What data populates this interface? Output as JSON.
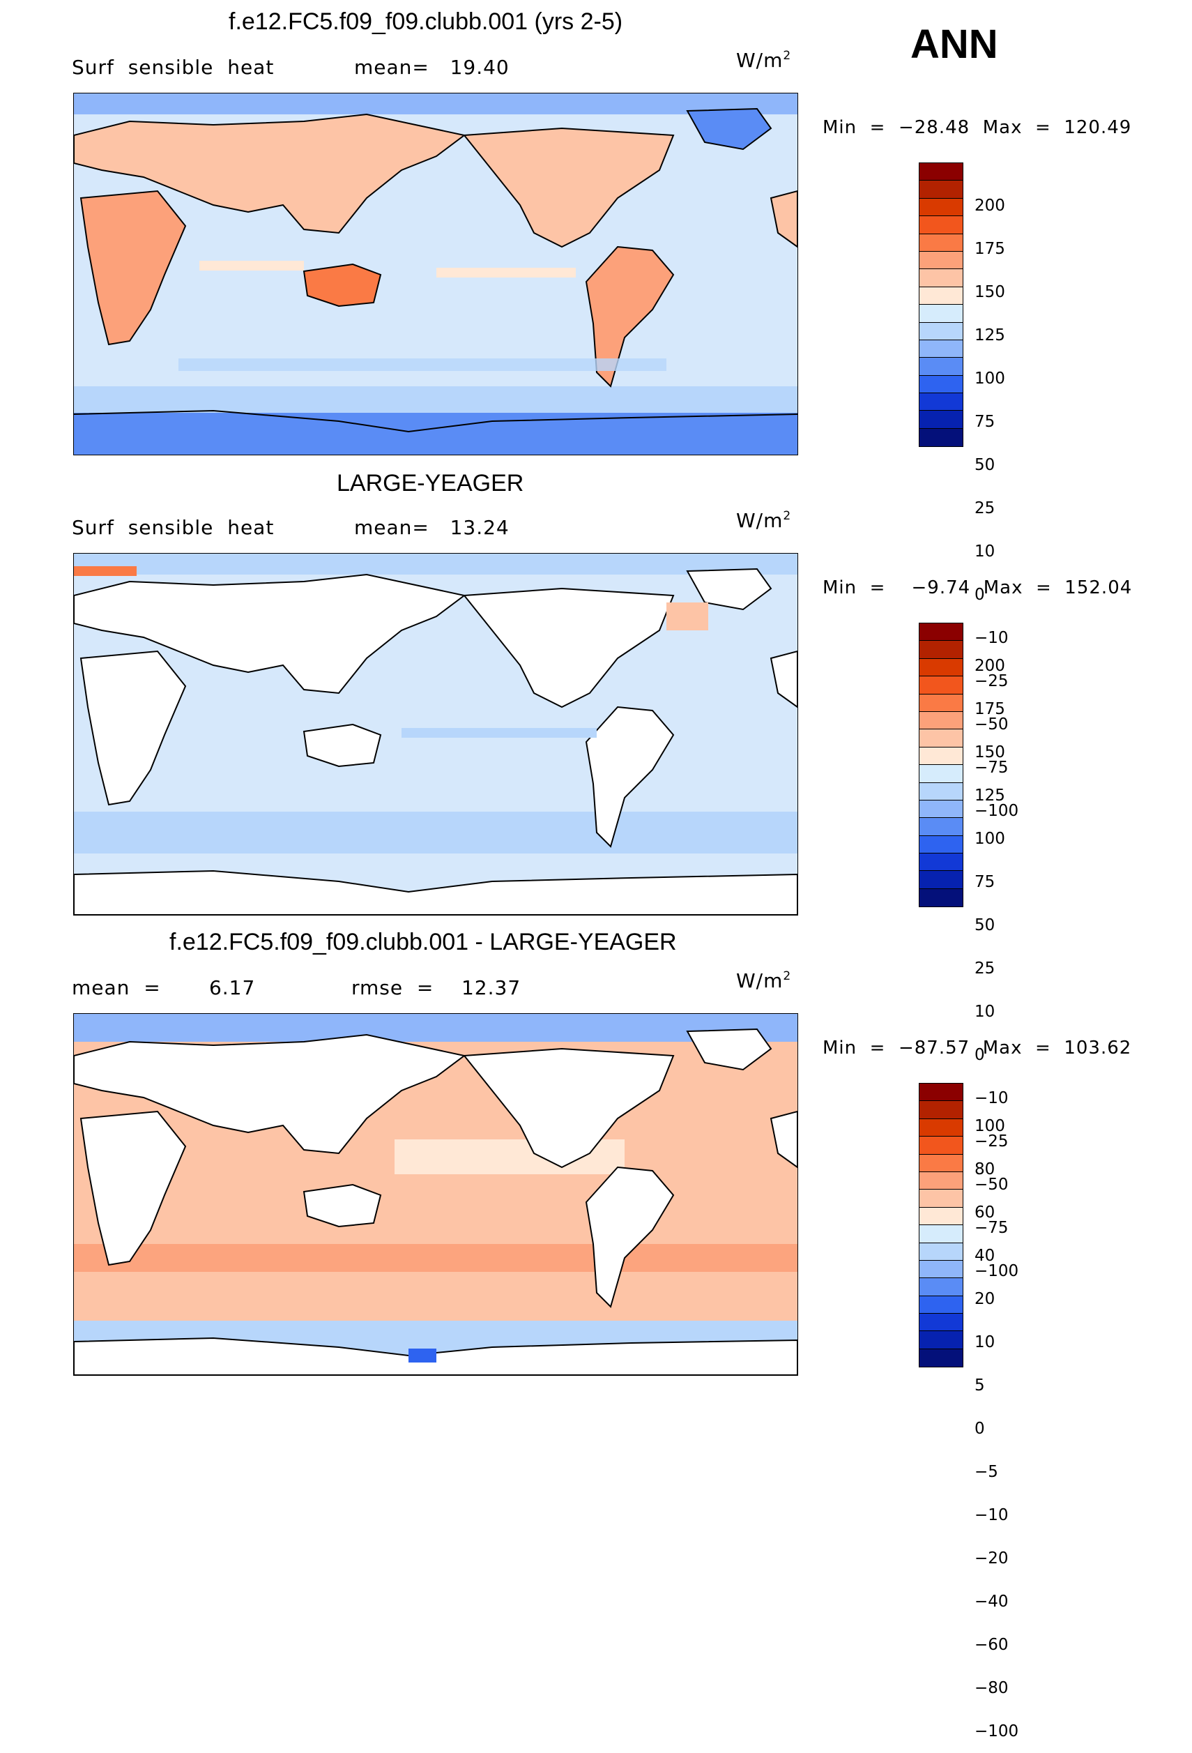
{
  "season": "ANN",
  "panels": [
    {
      "title": "f.e12.FC5.f09_f09.clubb.001 (yrs 2-5)",
      "left_label": "Surf  sensible  heat",
      "mid_label": "mean=   19.40",
      "units_label": "W/m",
      "units_sup": "2",
      "minmax": "Min  =  −28.48  Max  =  120.49",
      "colorbar_ticks": [
        "200",
        "175",
        "150",
        "125",
        "100",
        "75",
        "50",
        "25",
        "10",
        "0",
        "−10",
        "−25",
        "−50",
        "−75",
        "−100"
      ]
    },
    {
      "title": "LARGE-YEAGER",
      "left_label": "Surf  sensible  heat",
      "mid_label": "mean=   13.24",
      "units_label": "W/m",
      "units_sup": "2",
      "minmax": "Min  =    −9.74  Max  =  152.04",
      "colorbar_ticks": [
        "200",
        "175",
        "150",
        "125",
        "100",
        "75",
        "50",
        "25",
        "10",
        "0",
        "−10",
        "−25",
        "−50",
        "−75",
        "−100"
      ]
    },
    {
      "title": "f.e12.FC5.f09_f09.clubb.001 - LARGE-YEAGER",
      "left_label": "mean  =       6.17",
      "mid_label": "rmse  =    12.37",
      "units_label": "W/m",
      "units_sup": "2",
      "minmax": "Min  =  −87.57  Max  =  103.62",
      "colorbar_ticks": [
        "100",
        "80",
        "60",
        "40",
        "20",
        "10",
        "5",
        "0",
        "−5",
        "−10",
        "−20",
        "−40",
        "−60",
        "−80",
        "−100"
      ]
    }
  ],
  "colors": {
    "colorbar": [
      "#8b0000",
      "#b22200",
      "#d93a00",
      "#f2561d",
      "#fa7a45",
      "#fca17a",
      "#fdc4a6",
      "#ffe8d6",
      "#d6ecfc",
      "#b7d6fb",
      "#8fb6fa",
      "#5a8cf5",
      "#2e63f0",
      "#1239d6",
      "#0622b0",
      "#04107a"
    ],
    "land_shaded": "#f4b79a",
    "ocean_base": "#d6e8fb"
  },
  "map_data": {
    "projection": "cylindrical equidistant, centred on 180°",
    "panel1_mean": 19.4,
    "panel2_mean": 13.24,
    "panel3_mean": 6.17,
    "panel3_rmse": 12.37
  }
}
